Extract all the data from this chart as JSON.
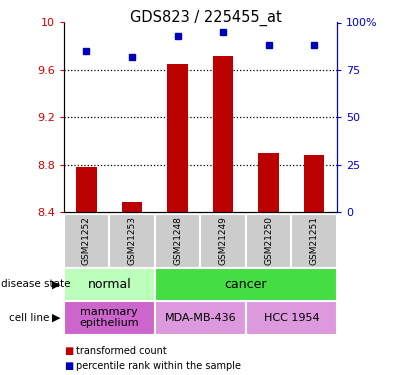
{
  "title": "GDS823 / 225455_at",
  "samples": [
    "GSM21252",
    "GSM21253",
    "GSM21248",
    "GSM21249",
    "GSM21250",
    "GSM21251"
  ],
  "bar_values": [
    8.78,
    8.48,
    9.65,
    9.72,
    8.9,
    8.88
  ],
  "dot_values": [
    85,
    82,
    93,
    95,
    88,
    88
  ],
  "ylim_left": [
    8.4,
    10.0
  ],
  "ylim_right": [
    0,
    100
  ],
  "yticks_left": [
    8.4,
    8.8,
    9.2,
    9.6,
    10.0
  ],
  "ytick_labels_left": [
    "8.4",
    "8.8",
    "9.2",
    "9.6",
    "10"
  ],
  "yticks_right": [
    0,
    25,
    50,
    75,
    100
  ],
  "ytick_labels_right": [
    "0",
    "25",
    "50",
    "75",
    "100%"
  ],
  "bar_color": "#bb0000",
  "dot_color": "#0000bb",
  "bar_bottom": 8.4,
  "disease_state": [
    {
      "label": "normal",
      "cols": [
        0,
        1
      ],
      "color": "#bbffbb"
    },
    {
      "label": "cancer",
      "cols": [
        2,
        3,
        4,
        5
      ],
      "color": "#44dd44"
    }
  ],
  "cell_line": [
    {
      "label": "mammary\nepithelium",
      "cols": [
        0,
        1
      ],
      "color": "#cc66cc"
    },
    {
      "label": "MDA-MB-436",
      "cols": [
        2,
        3
      ],
      "color": "#dd99dd"
    },
    {
      "label": "HCC 1954",
      "cols": [
        4,
        5
      ],
      "color": "#dd99dd"
    }
  ],
  "legend_items": [
    {
      "color": "#bb0000",
      "label": "transformed count"
    },
    {
      "color": "#0000bb",
      "label": "percentile rank within the sample"
    }
  ],
  "grid_yticks": [
    8.8,
    9.2,
    9.6
  ],
  "left_axis_color": "#cc0000",
  "right_axis_color": "#0000cc",
  "sample_box_color": "#cccccc",
  "figure_width": 4.11,
  "figure_height": 3.75,
  "dpi": 100
}
